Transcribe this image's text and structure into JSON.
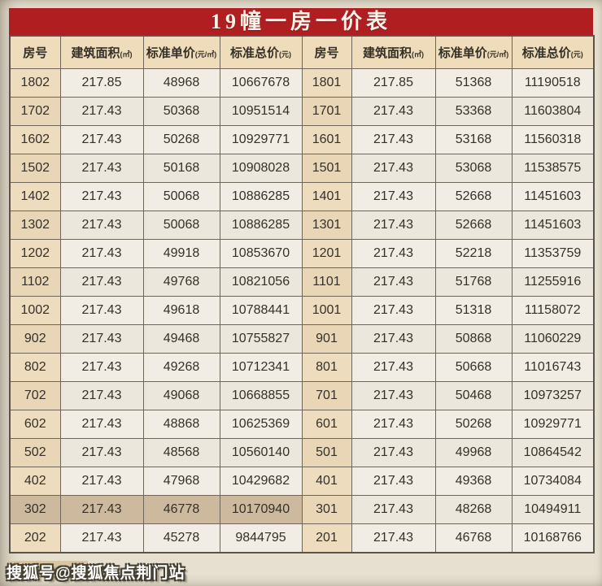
{
  "page": {
    "title": "19幢一房一价表",
    "watermark": "搜狐号@搜狐焦点荆门站"
  },
  "table": {
    "headers": [
      {
        "label": "房号",
        "unit": ""
      },
      {
        "label": "建筑面积",
        "unit": "(㎡)"
      },
      {
        "label": "标准单价",
        "unit": "(元/㎡)"
      },
      {
        "label": "标准总价",
        "unit": "(元)"
      },
      {
        "label": "房号",
        "unit": ""
      },
      {
        "label": "建筑面积",
        "unit": "(㎡)"
      },
      {
        "label": "标准单价",
        "unit": "(元/㎡)"
      },
      {
        "label": "标准总价",
        "unit": "(元)"
      }
    ],
    "rows": [
      [
        "1802",
        "217.85",
        "48968",
        "10667678",
        "1801",
        "217.85",
        "51368",
        "11190518"
      ],
      [
        "1702",
        "217.43",
        "50368",
        "10951514",
        "1701",
        "217.43",
        "53368",
        "11603804"
      ],
      [
        "1602",
        "217.43",
        "50268",
        "10929771",
        "1601",
        "217.43",
        "53168",
        "11560318"
      ],
      [
        "1502",
        "217.43",
        "50168",
        "10908028",
        "1501",
        "217.43",
        "53068",
        "11538575"
      ],
      [
        "1402",
        "217.43",
        "50068",
        "10886285",
        "1401",
        "217.43",
        "52668",
        "11451603"
      ],
      [
        "1302",
        "217.43",
        "50068",
        "10886285",
        "1301",
        "217.43",
        "52668",
        "11451603"
      ],
      [
        "1202",
        "217.43",
        "49918",
        "10853670",
        "1201",
        "217.43",
        "52218",
        "11353759"
      ],
      [
        "1102",
        "217.43",
        "49768",
        "10821056",
        "1101",
        "217.43",
        "51768",
        "11255916"
      ],
      [
        "1002",
        "217.43",
        "49618",
        "10788441",
        "1001",
        "217.43",
        "51318",
        "11158072"
      ],
      [
        "902",
        "217.43",
        "49468",
        "10755827",
        "901",
        "217.43",
        "50868",
        "11060229"
      ],
      [
        "802",
        "217.43",
        "49268",
        "10712341",
        "801",
        "217.43",
        "50668",
        "11016743"
      ],
      [
        "702",
        "217.43",
        "49068",
        "10668855",
        "701",
        "217.43",
        "50468",
        "10973257"
      ],
      [
        "602",
        "217.43",
        "48868",
        "10625369",
        "601",
        "217.43",
        "50268",
        "10929771"
      ],
      [
        "502",
        "217.43",
        "48568",
        "10560140",
        "501",
        "217.43",
        "49968",
        "10864542"
      ],
      [
        "402",
        "217.43",
        "47968",
        "10429682",
        "401",
        "217.43",
        "49368",
        "10734084"
      ],
      [
        "302",
        "217.43",
        "46778",
        "10170940",
        "301",
        "217.43",
        "48268",
        "10494911"
      ],
      [
        "202",
        "217.43",
        "45278",
        "9844795",
        "201",
        "217.43",
        "46768",
        "10168766"
      ]
    ],
    "highlight": {
      "row_index": 15,
      "columns": [
        0,
        1,
        2,
        3
      ]
    }
  },
  "colors": {
    "page_bg": "#e7e0d1",
    "banner_red": "#b01e22",
    "header_bg": "#eedcba",
    "room_bg": "#eedcbf",
    "room_bg_alt": "#e9d6b6",
    "cell_bg": "#f1ede4",
    "cell_bg_alt": "#ece7dc",
    "hl_bg": "#cdb99d",
    "border": "#6e6659",
    "outer_border": "#5a5349",
    "text": "#353028",
    "watermark_box": "#d7c5a3"
  }
}
